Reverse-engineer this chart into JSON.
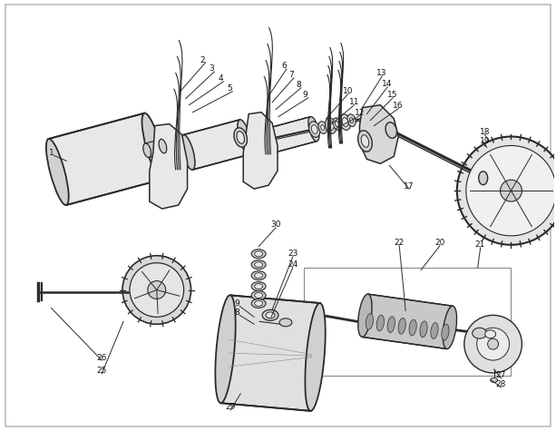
{
  "bg_color": "#ffffff",
  "line_color": "#2a2a2a",
  "label_color": "#111111",
  "fig_width": 6.13,
  "fig_height": 4.75,
  "dpi": 100,
  "border_color": "#bbbbbb",
  "fill_light": "#e8e8e8",
  "fill_mid": "#d0d0d0",
  "fill_dark": "#b0b0b0"
}
